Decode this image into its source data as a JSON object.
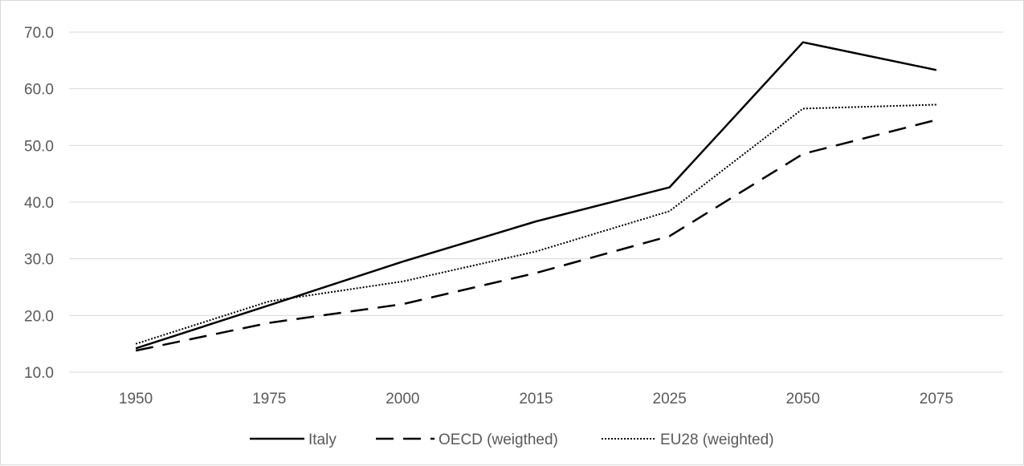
{
  "chart_data": {
    "type": "line",
    "categories": [
      "1950",
      "1975",
      "2000",
      "2015",
      "2025",
      "2050",
      "2075"
    ],
    "y_ticks": [
      "10.0",
      "20.0",
      "30.0",
      "40.0",
      "50.0",
      "60.0",
      "70.0"
    ],
    "ylim": [
      10,
      70
    ],
    "grid": true,
    "legend_position": "bottom",
    "series": [
      {
        "name": "Italy",
        "values": [
          14.2,
          21.8,
          29.5,
          36.6,
          42.6,
          68.2,
          63.3
        ],
        "line_style": "solid",
        "color": "#000000"
      },
      {
        "name": "OECD (weigthed)",
        "values": [
          13.8,
          18.7,
          22.0,
          27.5,
          34.0,
          48.5,
          54.5
        ],
        "line_style": "dashed",
        "color": "#000000"
      },
      {
        "name": "EU28 (weighted)",
        "values": [
          15.0,
          22.5,
          26.0,
          31.3,
          38.4,
          56.5,
          57.2
        ],
        "line_style": "dotted",
        "color": "#000000"
      }
    ]
  }
}
